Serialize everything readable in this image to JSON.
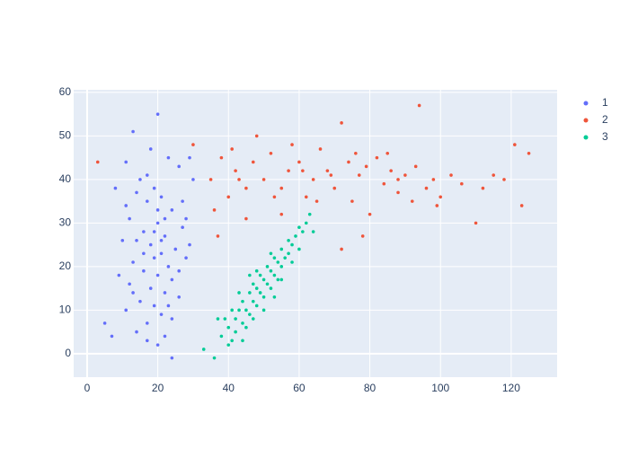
{
  "chart_data": {
    "type": "scatter",
    "xlim": [
      -3.8,
      133
    ],
    "ylim": [
      -5.4,
      60.6
    ],
    "xticks": [
      0,
      20,
      40,
      60,
      80,
      100,
      120
    ],
    "yticks": [
      0,
      10,
      20,
      30,
      40,
      50,
      60
    ],
    "grid": true,
    "legend": "right",
    "series": [
      {
        "name": "1",
        "color": "#636efa",
        "x": [
          20,
          13,
          18,
          23,
          11,
          26,
          15,
          19,
          21,
          17,
          8,
          24,
          12,
          20,
          16,
          22,
          27,
          14,
          18,
          25,
          10,
          21,
          19,
          13,
          23,
          28,
          16,
          20,
          9,
          24,
          12,
          18,
          22,
          26,
          15,
          19,
          11,
          21,
          24,
          17,
          14,
          22,
          20,
          24,
          5,
          7,
          29,
          30,
          27,
          28,
          29,
          26,
          11,
          14,
          17,
          20,
          22,
          16,
          19,
          21,
          13,
          23,
          17
        ],
        "y": [
          55,
          51,
          47,
          45,
          44,
          43,
          40,
          38,
          36,
          35,
          38,
          33,
          31,
          30,
          28,
          27,
          29,
          26,
          25,
          24,
          26,
          23,
          22,
          21,
          20,
          22,
          19,
          18,
          18,
          17,
          16,
          15,
          14,
          13,
          12,
          11,
          10,
          9,
          8,
          7,
          5,
          4,
          2,
          -1,
          7,
          4,
          45,
          40,
          35,
          31,
          25,
          19,
          34,
          37,
          41,
          33,
          31,
          23,
          28,
          26,
          14,
          11,
          3
        ]
      },
      {
        "name": "2",
        "color": "#ef553b",
        "x": [
          3,
          30,
          35,
          38,
          40,
          42,
          45,
          47,
          50,
          52,
          55,
          57,
          60,
          62,
          64,
          66,
          68,
          70,
          72,
          74,
          75,
          77,
          79,
          80,
          82,
          84,
          86,
          88,
          90,
          92,
          94,
          96,
          98,
          100,
          103,
          106,
          110,
          112,
          115,
          118,
          121,
          123,
          125,
          37,
          45,
          55,
          72,
          78,
          65,
          58,
          48,
          85,
          93,
          99,
          43,
          69,
          76,
          88,
          53,
          61,
          36,
          41
        ],
        "y": [
          44,
          48,
          40,
          45,
          36,
          42,
          38,
          44,
          40,
          46,
          38,
          42,
          44,
          36,
          40,
          47,
          42,
          38,
          53,
          44,
          35,
          41,
          43,
          32,
          45,
          39,
          42,
          37,
          41,
          35,
          57,
          38,
          40,
          36,
          41,
          39,
          30,
          38,
          41,
          40,
          48,
          34,
          46,
          27,
          31,
          32,
          24,
          27,
          35,
          48,
          50,
          46,
          43,
          34,
          40,
          41,
          46,
          40,
          36,
          42,
          33,
          47
        ]
      },
      {
        "name": "3",
        "color": "#00cc96",
        "x": [
          36,
          38,
          40,
          41,
          42,
          43,
          44,
          44,
          45,
          46,
          46,
          47,
          47,
          48,
          48,
          49,
          49,
          50,
          50,
          51,
          51,
          52,
          52,
          53,
          53,
          54,
          54,
          55,
          55,
          56,
          57,
          57,
          58,
          59,
          60,
          60,
          61,
          62,
          63,
          64,
          39,
          42,
          45,
          43,
          48,
          50,
          46,
          52,
          55,
          58,
          41,
          40,
          37,
          33,
          44,
          47,
          53
        ],
        "y": [
          -1,
          4,
          6,
          3,
          8,
          10,
          7,
          12,
          10,
          14,
          9,
          12,
          16,
          11,
          15,
          14,
          18,
          13,
          17,
          16,
          20,
          15,
          19,
          18,
          22,
          17,
          21,
          20,
          24,
          22,
          23,
          26,
          25,
          27,
          24,
          29,
          28,
          30,
          32,
          28,
          8,
          5,
          6,
          14,
          19,
          10,
          18,
          23,
          17,
          21,
          10,
          2,
          8,
          1,
          3,
          8,
          13
        ]
      }
    ]
  }
}
